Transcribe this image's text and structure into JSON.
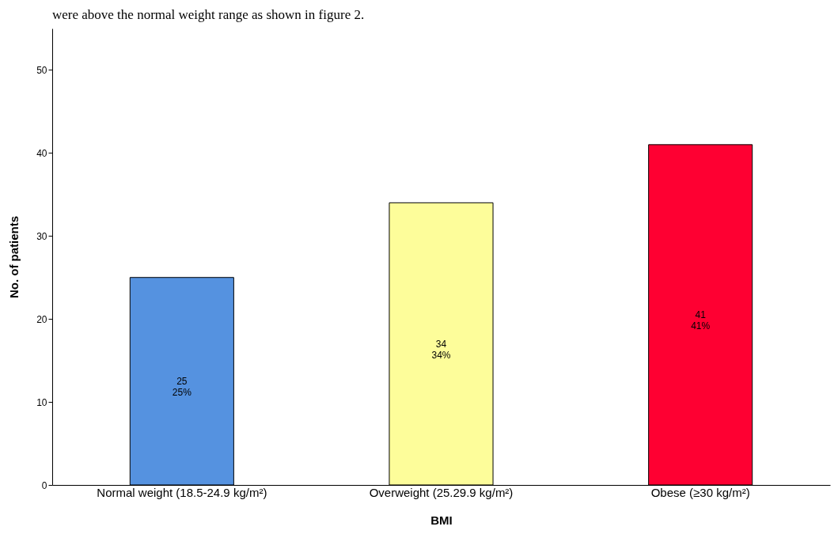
{
  "chart_data": {
    "type": "bar",
    "annotations": [
      "were above the normal weight range as shown in figure 2."
    ],
    "xlabel": "BMI",
    "ylabel": "No. of patients",
    "categories": [
      "Normal weight (18.5-24.9 kg/m²)",
      "Overweight (25.29.9 kg/m²)",
      "Obese (≥30 kg/m²)"
    ],
    "values": [
      25,
      34,
      41
    ],
    "colors": [
      "#5592e0",
      "#fdfd9a",
      "#fe0032"
    ],
    "value_labels": [
      "25\n25%",
      "34\n34%",
      "41\n41%"
    ],
    "ylim": [
      0,
      55
    ],
    "yticks": [
      0,
      10,
      20,
      30,
      40,
      50
    ],
    "grid": false
  }
}
